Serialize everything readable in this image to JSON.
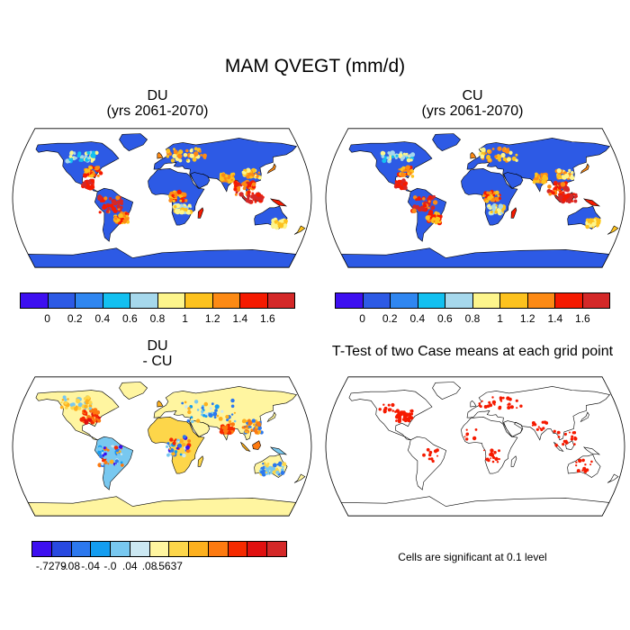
{
  "title": "MAM QVEGT (mm/d)",
  "panels": {
    "du": {
      "title_line1": "DU",
      "title_line2": "(yrs 2061-2070)"
    },
    "cu": {
      "title_line1": "CU",
      "title_line2": "(yrs 2061-2070)"
    },
    "diff": {
      "title_line1": "DU",
      "title_line2": "- CU"
    },
    "ttest": {
      "title": "T-Test of two Case means at each grid point",
      "note": "Cells are significant at 0.1 level"
    }
  },
  "colorbar_main": {
    "colors": [
      "#3d0ff0",
      "#2d5ae5",
      "#2f86f0",
      "#13c0f0",
      "#a6d8ec",
      "#fdf58c",
      "#fdc21e",
      "#fd8a14",
      "#f51a00",
      "#d42828"
    ],
    "labels": [
      "0",
      "0.2",
      "0.4",
      "0.6",
      "0.8",
      "1",
      "1.2",
      "1.4",
      "1.6"
    ]
  },
  "colorbar_diff": {
    "colors": [
      "#3d0ff0",
      "#2849e0",
      "#2c78ee",
      "#139df0",
      "#78c8f0",
      "#cce8f2",
      "#fff5a0",
      "#fdd64a",
      "#fdb01e",
      "#fd7a10",
      "#f52a00",
      "#e01010",
      "#d42828"
    ],
    "labels": [
      "-.7279",
      "-.08",
      "-.04",
      "-.0",
      ".04",
      ".08",
      ".5637"
    ]
  },
  "chart_data": {
    "type": "map",
    "variable": "QVEGT",
    "season": "MAM",
    "units": "mm/d",
    "panels": [
      "DU (yrs 2061-2070)",
      "CU (yrs 2061-2070)",
      "DU - CU",
      "T-Test of two Case means at each grid point"
    ],
    "main_levels": [
      0,
      0.2,
      0.4,
      0.6,
      0.8,
      1,
      1.2,
      1.4,
      1.6
    ],
    "diff_range": [
      -0.7279,
      0.5637
    ],
    "diff_levels": [
      -0.08,
      -0.04,
      0,
      0.04,
      0.08
    ],
    "significance_level": 0.1
  }
}
